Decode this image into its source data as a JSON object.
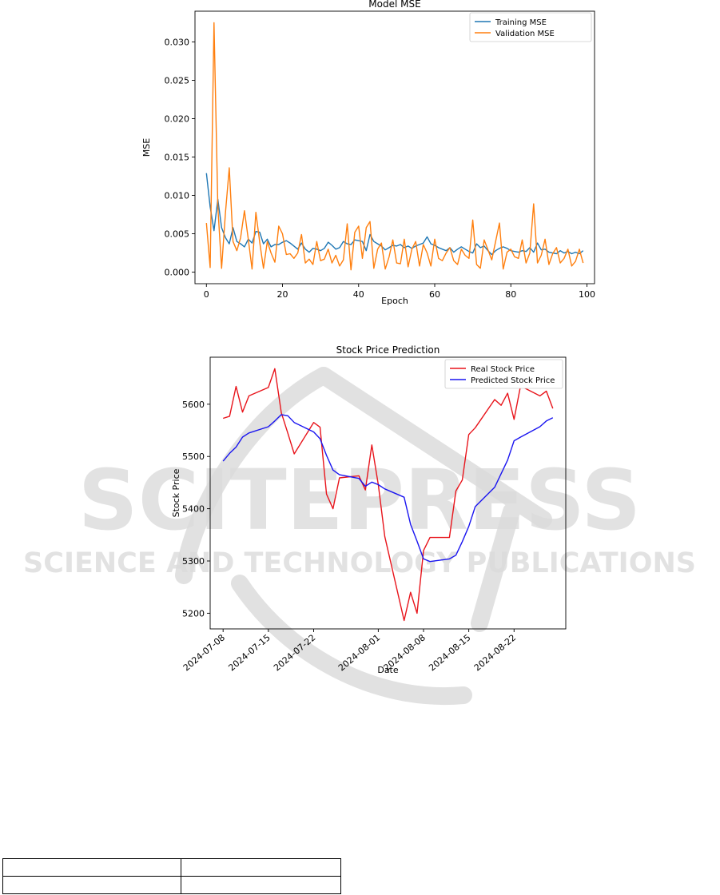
{
  "watermark": {
    "line1": "SCITEPRESS",
    "line2": "SCIENCE AND TECHNOLOGY PUBLICATIONS"
  },
  "chart_data": [
    {
      "type": "line",
      "title": "Model MSE",
      "xlabel": "Epoch",
      "ylabel": "MSE",
      "xlim": [
        -3,
        102
      ],
      "ylim": [
        -0.0015,
        0.034
      ],
      "xticks": [
        0,
        20,
        40,
        60,
        80,
        100
      ],
      "yticks": [
        0.0,
        0.005,
        0.01,
        0.015,
        0.02,
        0.025,
        0.03
      ],
      "ytick_labels": [
        "0.000",
        "0.005",
        "0.010",
        "0.015",
        "0.020",
        "0.025",
        "0.030"
      ],
      "legend_position": "upper right",
      "grid": false,
      "series": [
        {
          "name": "Training MSE",
          "color": "#1f77b4",
          "x": [
            0,
            1,
            2,
            3,
            4,
            5,
            6,
            7,
            8,
            9,
            10,
            11,
            12,
            13,
            14,
            15,
            16,
            17,
            18,
            19,
            20,
            21,
            22,
            23,
            24,
            25,
            26,
            27,
            28,
            29,
            30,
            31,
            32,
            33,
            34,
            35,
            36,
            37,
            38,
            39,
            40,
            41,
            42,
            43,
            44,
            45,
            46,
            47,
            48,
            49,
            50,
            51,
            52,
            53,
            54,
            55,
            56,
            57,
            58,
            59,
            60,
            61,
            62,
            63,
            64,
            65,
            66,
            67,
            68,
            69,
            70,
            71,
            72,
            73,
            74,
            75,
            76,
            77,
            78,
            79,
            80,
            81,
            82,
            83,
            84,
            85,
            86,
            87,
            88,
            89,
            90,
            91,
            92,
            93,
            94,
            95,
            96,
            97,
            98,
            99
          ],
          "values": [
            0.0129,
            0.0085,
            0.0054,
            0.0095,
            0.0058,
            0.0045,
            0.0037,
            0.0058,
            0.004,
            0.0037,
            0.0033,
            0.0043,
            0.0038,
            0.0053,
            0.0052,
            0.0037,
            0.0043,
            0.0033,
            0.0036,
            0.0036,
            0.0039,
            0.0041,
            0.0038,
            0.0034,
            0.003,
            0.0038,
            0.003,
            0.0026,
            0.0031,
            0.003,
            0.0028,
            0.0031,
            0.0039,
            0.0035,
            0.003,
            0.0032,
            0.004,
            0.0037,
            0.0036,
            0.0042,
            0.0041,
            0.004,
            0.0028,
            0.0049,
            0.004,
            0.0037,
            0.0034,
            0.0029,
            0.0032,
            0.0035,
            0.0034,
            0.0036,
            0.0032,
            0.0034,
            0.0031,
            0.0034,
            0.0036,
            0.0038,
            0.0046,
            0.0037,
            0.0035,
            0.0032,
            0.003,
            0.0028,
            0.0032,
            0.0026,
            0.003,
            0.0033,
            0.003,
            0.0027,
            0.0025,
            0.0037,
            0.0032,
            0.0034,
            0.0028,
            0.0023,
            0.0028,
            0.0031,
            0.0033,
            0.0031,
            0.0028,
            0.0027,
            0.0026,
            0.0028,
            0.0027,
            0.0032,
            0.0026,
            0.0038,
            0.0029,
            0.003,
            0.0026,
            0.0025,
            0.0024,
            0.0028,
            0.0025,
            0.0027,
            0.0024,
            0.0026,
            0.0024,
            0.0028
          ]
        },
        {
          "name": "Validation MSE",
          "color": "#ff7f0e",
          "x": [
            0,
            1,
            2,
            3,
            4,
            5,
            6,
            7,
            8,
            9,
            10,
            11,
            12,
            13,
            14,
            15,
            16,
            17,
            18,
            19,
            20,
            21,
            22,
            23,
            24,
            25,
            26,
            27,
            28,
            29,
            30,
            31,
            32,
            33,
            34,
            35,
            36,
            37,
            38,
            39,
            40,
            41,
            42,
            43,
            44,
            45,
            46,
            47,
            48,
            49,
            50,
            51,
            52,
            53,
            54,
            55,
            56,
            57,
            58,
            59,
            60,
            61,
            62,
            63,
            64,
            65,
            66,
            67,
            68,
            69,
            70,
            71,
            72,
            73,
            74,
            75,
            76,
            77,
            78,
            79,
            80,
            81,
            82,
            83,
            84,
            85,
            86,
            87,
            88,
            89,
            90,
            91,
            92,
            93,
            94,
            95,
            96,
            97,
            98,
            99
          ],
          "values": [
            0.0064,
            0.0006,
            0.0325,
            0.0085,
            0.0005,
            0.0077,
            0.0136,
            0.004,
            0.0028,
            0.0045,
            0.008,
            0.0043,
            0.0004,
            0.0078,
            0.0039,
            0.0005,
            0.004,
            0.0025,
            0.0013,
            0.006,
            0.005,
            0.0023,
            0.0024,
            0.0018,
            0.0025,
            0.0049,
            0.0012,
            0.0017,
            0.001,
            0.004,
            0.0015,
            0.0017,
            0.003,
            0.0012,
            0.0022,
            0.0008,
            0.0016,
            0.0063,
            0.0003,
            0.0052,
            0.006,
            0.0018,
            0.0058,
            0.0066,
            0.0005,
            0.003,
            0.0038,
            0.0004,
            0.002,
            0.0042,
            0.0012,
            0.0011,
            0.0043,
            0.0007,
            0.003,
            0.004,
            0.0008,
            0.0036,
            0.0025,
            0.0008,
            0.0043,
            0.0018,
            0.0015,
            0.0025,
            0.0032,
            0.0015,
            0.001,
            0.003,
            0.0022,
            0.0018,
            0.0068,
            0.001,
            0.0005,
            0.0042,
            0.0029,
            0.0016,
            0.004,
            0.0064,
            0.0004,
            0.0026,
            0.003,
            0.002,
            0.0018,
            0.0042,
            0.0012,
            0.0025,
            0.0089,
            0.0012,
            0.0022,
            0.0043,
            0.001,
            0.0024,
            0.0032,
            0.0012,
            0.0018,
            0.003,
            0.0008,
            0.0014,
            0.003,
            0.0012
          ]
        }
      ]
    },
    {
      "type": "line",
      "title": "Stock Price Prediction",
      "xlabel": "Date",
      "ylabel": "Stock Price",
      "x_type": "date",
      "xlim": [
        "2024-07-06",
        "2024-08-30"
      ],
      "ylim": [
        5170,
        5690
      ],
      "xticks": [
        "2024-07-08",
        "2024-07-15",
        "2024-07-22",
        "2024-08-01",
        "2024-08-08",
        "2024-08-15",
        "2024-08-22"
      ],
      "yticks": [
        5200,
        5300,
        5400,
        5500,
        5600
      ],
      "legend_position": "upper right",
      "grid": false,
      "series": [
        {
          "name": "Real Stock Price",
          "color": "#e8141b",
          "x": [
            "2024-07-08",
            "2024-07-09",
            "2024-07-10",
            "2024-07-11",
            "2024-07-12",
            "2024-07-15",
            "2024-07-16",
            "2024-07-17",
            "2024-07-18",
            "2024-07-19",
            "2024-07-22",
            "2024-07-23",
            "2024-07-24",
            "2024-07-25",
            "2024-07-26",
            "2024-07-29",
            "2024-07-30",
            "2024-07-31",
            "2024-08-01",
            "2024-08-02",
            "2024-08-05",
            "2024-08-06",
            "2024-08-07",
            "2024-08-08",
            "2024-08-09",
            "2024-08-12",
            "2024-08-13",
            "2024-08-14",
            "2024-08-15",
            "2024-08-16",
            "2024-08-19",
            "2024-08-20",
            "2024-08-21",
            "2024-08-22",
            "2024-08-23",
            "2024-08-26",
            "2024-08-27",
            "2024-08-28"
          ],
          "values": [
            5573,
            5577,
            5634,
            5585,
            5616,
            5632,
            5668,
            5584,
            5545,
            5505,
            5565,
            5556,
            5428,
            5400,
            5459,
            5463,
            5436,
            5522,
            5446,
            5347,
            5186,
            5240,
            5200,
            5320,
            5345,
            5345,
            5434,
            5455,
            5542,
            5555,
            5609,
            5598,
            5621,
            5571,
            5635,
            5616,
            5625,
            5592
          ]
        },
        {
          "name": "Predicted Stock Price",
          "color": "#1a15f0",
          "x": [
            "2024-07-08",
            "2024-07-09",
            "2024-07-10",
            "2024-07-11",
            "2024-07-12",
            "2024-07-15",
            "2024-07-16",
            "2024-07-17",
            "2024-07-18",
            "2024-07-19",
            "2024-07-22",
            "2024-07-23",
            "2024-07-24",
            "2024-07-25",
            "2024-07-26",
            "2024-07-29",
            "2024-07-30",
            "2024-07-31",
            "2024-08-01",
            "2024-08-02",
            "2024-08-05",
            "2024-08-06",
            "2024-08-07",
            "2024-08-08",
            "2024-08-09",
            "2024-08-12",
            "2024-08-13",
            "2024-08-14",
            "2024-08-15",
            "2024-08-16",
            "2024-08-19",
            "2024-08-20",
            "2024-08-21",
            "2024-08-22",
            "2024-08-23",
            "2024-08-26",
            "2024-08-27",
            "2024-08-28"
          ],
          "values": [
            5491,
            5506,
            5518,
            5537,
            5545,
            5557,
            5568,
            5580,
            5578,
            5565,
            5547,
            5534,
            5502,
            5474,
            5465,
            5458,
            5443,
            5451,
            5446,
            5438,
            5422,
            5370,
            5338,
            5304,
            5299,
            5304,
            5311,
            5337,
            5366,
            5404,
            5441,
            5467,
            5493,
            5530,
            5537,
            5557,
            5568,
            5574
          ]
        }
      ]
    }
  ]
}
